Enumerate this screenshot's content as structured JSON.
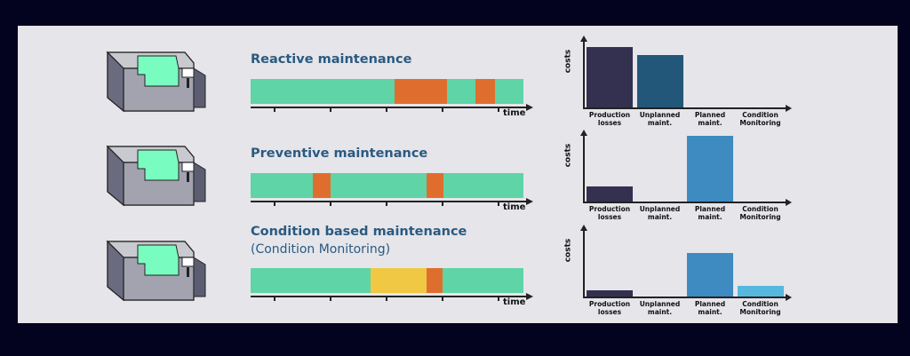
{
  "colors": {
    "running": "#5fd4a6",
    "failure": "#df6e2e",
    "planned_stop": "#df6e2e",
    "warning": "#f0c843",
    "title": "#2b5a80"
  },
  "time_label": "time",
  "costs_label": "costs",
  "cost_categories": [
    {
      "label": "Production losses",
      "color": "#33314f"
    },
    {
      "label": "Unplanned maint.",
      "color": "#235779"
    },
    {
      "label": "Planned maint.",
      "color": "#3d8bc0"
    },
    {
      "label": "Condition Monitoring",
      "color": "#56b8de"
    }
  ],
  "rows": [
    {
      "title": "Reactive maintenance",
      "subtitle": "",
      "timeline": [
        {
          "state": "running",
          "from": 0,
          "to": 0.528
        },
        {
          "state": "failure",
          "from": 0.528,
          "to": 0.72
        },
        {
          "state": "running",
          "from": 0.72,
          "to": 0.824
        },
        {
          "state": "failure",
          "from": 0.824,
          "to": 0.896
        },
        {
          "state": "running",
          "from": 0.896,
          "to": 1
        }
      ],
      "costs": [
        89,
        77,
        0,
        0
      ]
    },
    {
      "title": "Preventive maintenance",
      "subtitle": "",
      "timeline": [
        {
          "state": "running",
          "from": 0,
          "to": 0.228
        },
        {
          "state": "planned_stop",
          "from": 0.228,
          "to": 0.293
        },
        {
          "state": "running",
          "from": 0.293,
          "to": 0.645
        },
        {
          "state": "planned_stop",
          "from": 0.645,
          "to": 0.707
        },
        {
          "state": "running",
          "from": 0.707,
          "to": 1
        }
      ],
      "costs": [
        23,
        0,
        98,
        0
      ]
    },
    {
      "title": "Condition based maintenance",
      "subtitle": "(Condition Monitoring)",
      "timeline": [
        {
          "state": "running",
          "from": 0,
          "to": 0.44
        },
        {
          "state": "warning",
          "from": 0.44,
          "to": 0.645
        },
        {
          "state": "planned_stop",
          "from": 0.645,
          "to": 0.704
        },
        {
          "state": "running",
          "from": 0.704,
          "to": 1
        }
      ],
      "costs": [
        9,
        0,
        65,
        16
      ]
    }
  ]
}
